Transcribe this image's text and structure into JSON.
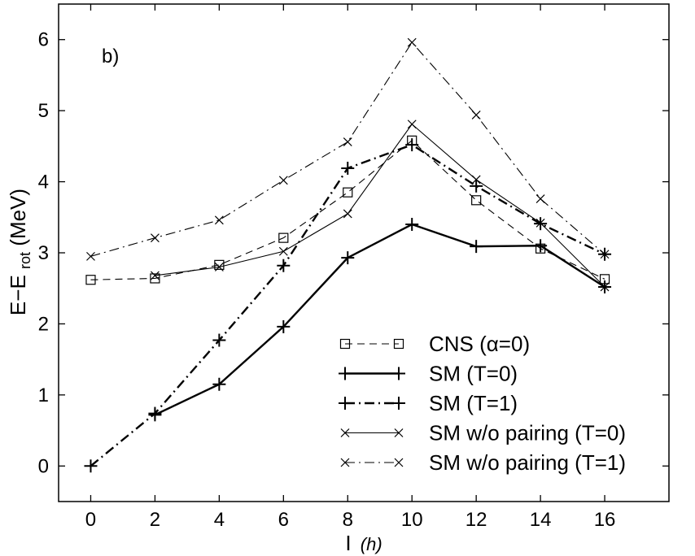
{
  "chart_data": {
    "type": "line",
    "title": "",
    "panel_label": "b)",
    "xlabel_main": "I",
    "xlabel_unit": "(h)",
    "ylabel_main": "E−E",
    "ylabel_sub": "rot",
    "ylabel_unit": " (MeV)",
    "xlim": [
      -1,
      18
    ],
    "ylim": [
      -0.5,
      6.5
    ],
    "xticks": [
      0,
      2,
      4,
      6,
      8,
      10,
      12,
      14,
      16
    ],
    "yticks": [
      0,
      1,
      2,
      3,
      4,
      5,
      6
    ],
    "grid": false,
    "legend_position": "lower-right",
    "series": [
      {
        "name": "CNS (α=0)",
        "marker": "square",
        "line": "dashed",
        "weight": "thin",
        "x": [
          0,
          2,
          4,
          6,
          8,
          10,
          12,
          14,
          16
        ],
        "y": [
          2.62,
          2.64,
          2.83,
          3.21,
          3.85,
          4.58,
          3.74,
          3.06,
          2.63
        ]
      },
      {
        "name": "SM (T=0)",
        "marker": "plus",
        "line": "solid",
        "weight": "thick",
        "x": [
          2,
          4,
          6,
          8,
          10,
          12,
          14,
          16
        ],
        "y": [
          0.72,
          1.15,
          1.96,
          2.93,
          3.4,
          3.09,
          3.1,
          2.52
        ]
      },
      {
        "name": "SM (T=1)",
        "marker": "plus",
        "line": "dashdot",
        "weight": "thick",
        "x": [
          0,
          2,
          4,
          6,
          8,
          10,
          12,
          14,
          16
        ],
        "y": [
          0.0,
          0.74,
          1.77,
          2.82,
          4.19,
          4.52,
          3.94,
          3.41,
          2.98
        ]
      },
      {
        "name": "SM w/o pairing (T=0)",
        "marker": "x",
        "line": "solid",
        "weight": "thin",
        "x": [
          2,
          4,
          6,
          8,
          10,
          12,
          14,
          16
        ],
        "y": [
          2.68,
          2.8,
          3.02,
          3.55,
          4.81,
          4.03,
          3.42,
          2.52
        ]
      },
      {
        "name": "SM w/o pairing (T=1)",
        "marker": "x",
        "line": "dashdot",
        "weight": "thin",
        "x": [
          0,
          2,
          4,
          6,
          8,
          10,
          12,
          14,
          16
        ],
        "y": [
          2.95,
          3.21,
          3.46,
          4.02,
          4.56,
          5.96,
          4.94,
          3.76,
          2.98
        ]
      }
    ]
  }
}
